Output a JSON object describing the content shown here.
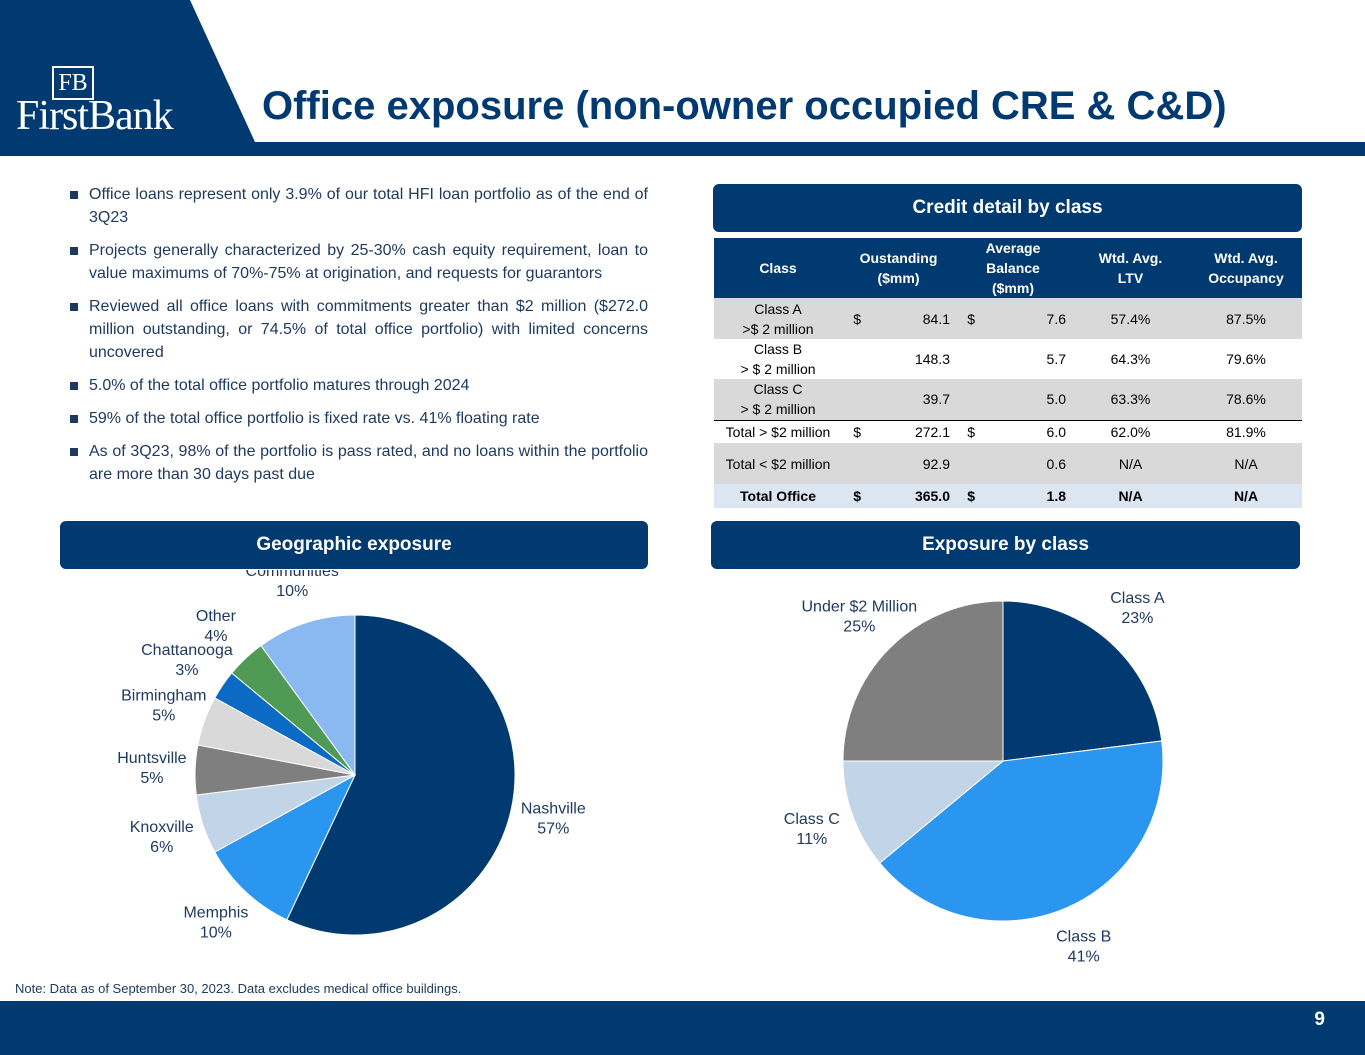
{
  "header": {
    "logo_mark": "FB",
    "logo_text": "FirstBank",
    "title": "Office exposure (non-owner occupied CRE & C&D)"
  },
  "bullets": [
    "Office loans represent only 3.9% of our total HFI loan portfolio as of the end of 3Q23",
    "Projects generally characterized by 25-30% cash equity requirement, loan to value maximums of 70%-75% at origination, and requests for guarantors",
    "Reviewed all office loans with commitments greater than $2 million ($272.0 million outstanding, or 74.5% of total office portfolio) with limited concerns uncovered",
    "5.0% of the total office portfolio matures through 2024",
    "59% of the total office portfolio is fixed rate vs. 41% floating rate",
    "As of 3Q23, 98% of the portfolio is pass rated, and no loans within the portfolio are more than 30 days past due"
  ],
  "table": {
    "title": "Credit detail by class",
    "columns": [
      [
        "Class"
      ],
      [
        "Oustanding",
        "($mm)"
      ],
      [
        "Average",
        "Balance",
        "($mm)"
      ],
      [
        "Wtd. Avg.",
        "LTV"
      ],
      [
        "Wtd. Avg.",
        "Occupancy"
      ]
    ],
    "rows": [
      {
        "class": [
          "Class A",
          ">$ 2 million"
        ],
        "outstanding_currency": "$",
        "outstanding": "84.1",
        "average_currency": "$",
        "average": "7.6",
        "ltv": "57.4%",
        "occupancy": "87.5%"
      },
      {
        "class": [
          "Class B",
          "> $ 2 million"
        ],
        "outstanding": "148.3",
        "average": "5.7",
        "ltv": "64.3%",
        "occupancy": "79.6%"
      },
      {
        "class": [
          "Class C",
          "> $ 2 million"
        ],
        "outstanding": "39.7",
        "average": "5.0",
        "ltv": "63.3%",
        "occupancy": "78.6%"
      },
      {
        "class": [
          "Total > $2 million"
        ],
        "outstanding_currency": "$",
        "outstanding": "272.1",
        "average_currency": "$",
        "average": "6.0",
        "ltv": "62.0%",
        "occupancy": "81.9%"
      },
      {
        "class": [
          "Total < $2 million"
        ],
        "outstanding": "92.9",
        "average": "0.6",
        "ltv": "N/A",
        "occupancy": "N/A"
      },
      {
        "class": [
          "Total Office"
        ],
        "outstanding_currency": "$",
        "outstanding": "365.0",
        "average_currency": "$",
        "average": "1.8",
        "ltv": "N/A",
        "occupancy": "N/A"
      }
    ]
  },
  "chart_data": [
    {
      "type": "pie",
      "title": "Geographic exposure",
      "categories": [
        "Nashville",
        "Memphis",
        "Knoxville",
        "Huntsville",
        "Birmingham",
        "Chattanooga",
        "Other",
        "Communities"
      ],
      "values": [
        57,
        10,
        6,
        5,
        5,
        3,
        4,
        10
      ],
      "value_labels": [
        "57%",
        "10%",
        "6%",
        "5%",
        "5%",
        "3%",
        "4%",
        "10%"
      ],
      "colors": [
        "#003a70",
        "#2b96f0",
        "#c2d4e8",
        "#7f7f7f",
        "#d9d9d9",
        "#0b6bc4",
        "#4f9a55",
        "#8ab8f0"
      ]
    },
    {
      "type": "pie",
      "title": "Exposure by class",
      "categories": [
        "Class A",
        "Class B",
        "Class C",
        "Under $2 Million"
      ],
      "values": [
        23,
        41,
        11,
        25
      ],
      "value_labels": [
        "23%",
        "41%",
        "11%",
        "25%"
      ],
      "colors": [
        "#003a70",
        "#2b96f0",
        "#c2d4e8",
        "#7f7f7f"
      ]
    }
  ],
  "note": "Note: Data as of September 30, 2023. Data excludes medical office buildings.",
  "page_number": "9"
}
